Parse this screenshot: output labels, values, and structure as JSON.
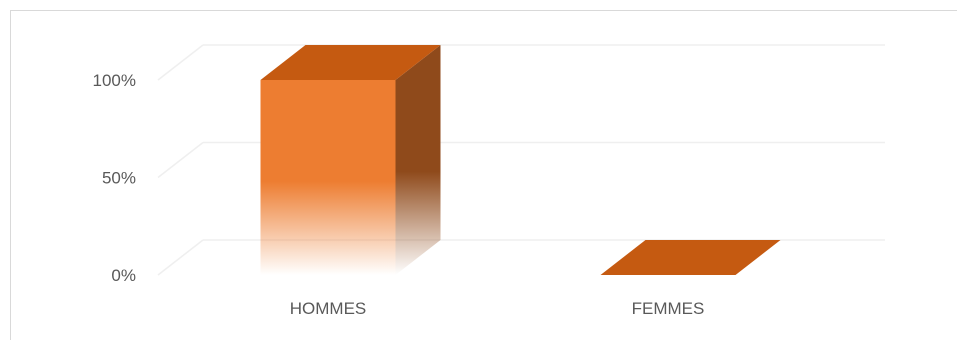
{
  "chart_data": {
    "type": "bar",
    "style": "3d-column",
    "categories": [
      "HOMMES",
      "FEMMES"
    ],
    "values": [
      100,
      0
    ],
    "ylim": [
      0,
      100
    ],
    "yticks": [
      "0%",
      "50%",
      "100%"
    ],
    "ytick_values": [
      0,
      50,
      100
    ],
    "grid": true,
    "legend": "none",
    "colors": {
      "front": "#ED7D31",
      "top": "#C55A11",
      "side": "#8F4A1B",
      "grid": "#efefef",
      "text": "#595959"
    }
  }
}
